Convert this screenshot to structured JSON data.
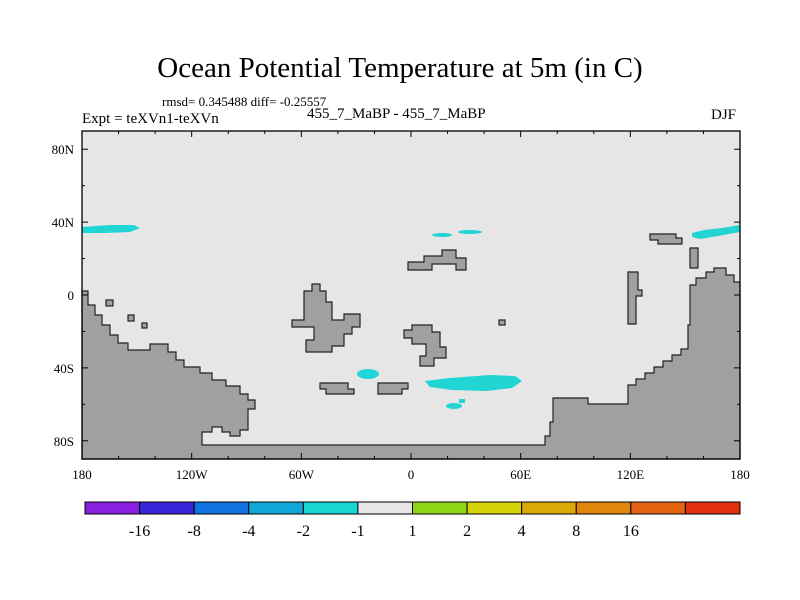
{
  "title": "Ocean Potential Temperature at 5m (in C)",
  "stats_line": "rmsd= 0.345488 diff= -0.25557",
  "experiment_label": "Expt = teXVn1-teXVn",
  "center_label": "455_7_MaBP - 455_7_MaBP",
  "season_label": "DJF",
  "map": {
    "field_fill": "#e6e6e6",
    "land_fill": "#a0a0a0",
    "anomaly_color": "#21d5d5",
    "lon_ticks": [
      "180",
      "120W",
      "60W",
      "0",
      "60E",
      "120E",
      "180"
    ],
    "lat_ticks": [
      "80N",
      "40N",
      "0",
      "40S",
      "80S"
    ]
  },
  "colorbar": {
    "colors": [
      "#8b1fe0",
      "#3725d9",
      "#0f74e2",
      "#11a8d9",
      "#19d6d2",
      "#e6e6e6",
      "#8fd716",
      "#d6d206",
      "#dca90a",
      "#e1860a",
      "#e36210",
      "#e1300e"
    ],
    "labels": [
      "-16",
      "-8",
      "-4",
      "-2",
      "-1",
      "1",
      "2",
      "4",
      "8",
      "16"
    ]
  }
}
